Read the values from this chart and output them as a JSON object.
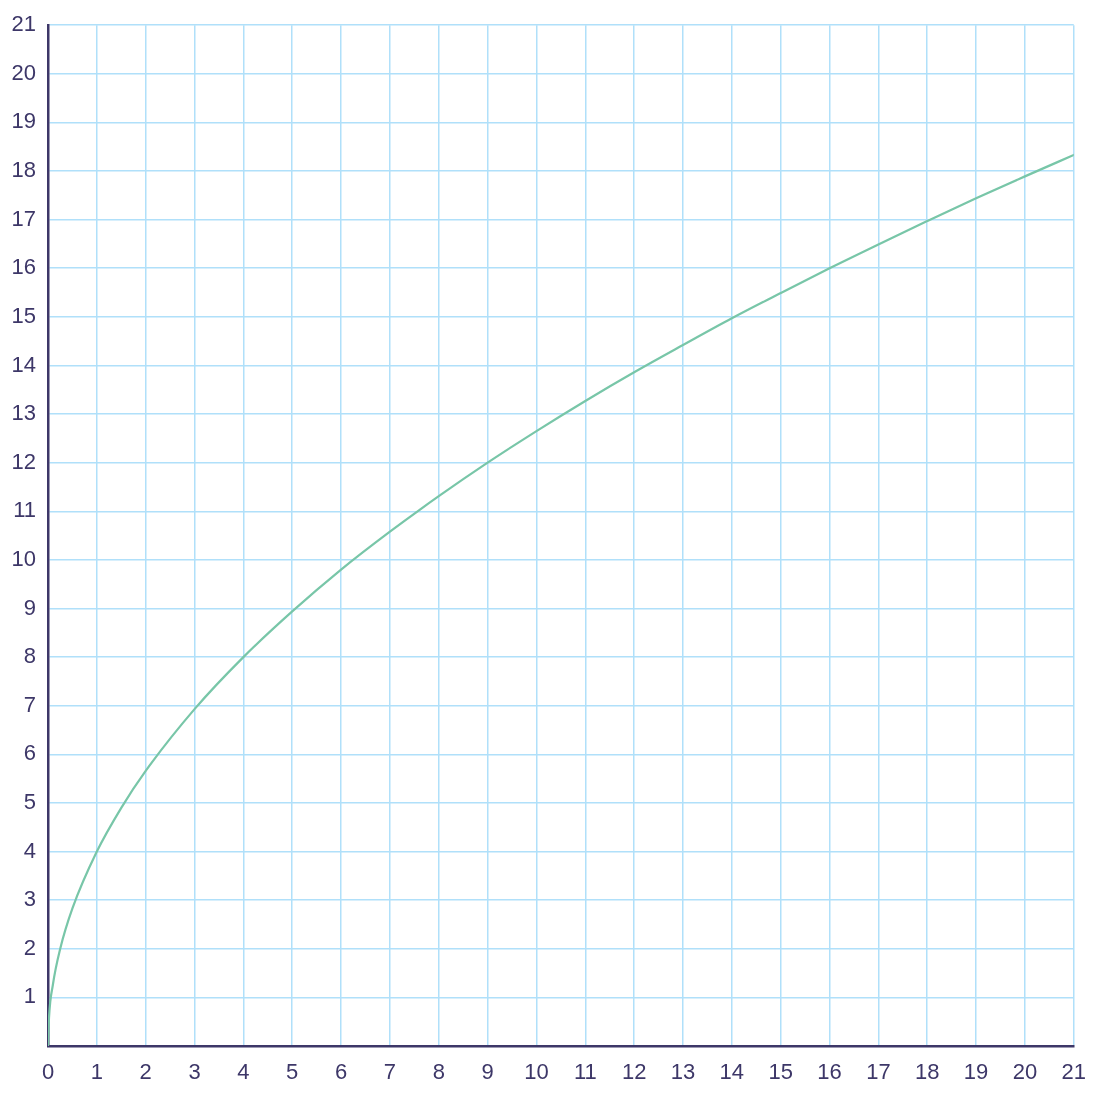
{
  "chart_data": {
    "type": "line",
    "x": [
      0,
      0.02,
      0.1,
      0.25,
      0.5,
      1,
      1.5,
      2,
      3,
      4,
      5,
      6,
      7,
      8,
      9,
      10,
      11,
      12,
      13,
      14,
      15,
      16,
      17,
      18,
      19,
      20,
      21
    ],
    "values": [
      0,
      0.57,
      1.26,
      2,
      2.83,
      4,
      4.9,
      5.66,
      6.93,
      8,
      8.94,
      9.8,
      10.58,
      11.31,
      12,
      12.65,
      13.27,
      13.86,
      14.42,
      14.97,
      15.49,
      16,
      16.49,
      16.97,
      17.44,
      17.89,
      18.33
    ],
    "color": "#78c6a8",
    "xlim": [
      0,
      21
    ],
    "ylim": [
      0,
      21
    ],
    "xticks": [
      0,
      1,
      2,
      3,
      4,
      5,
      6,
      7,
      8,
      9,
      10,
      11,
      12,
      13,
      14,
      15,
      16,
      17,
      18,
      19,
      20,
      21
    ],
    "yticks": [
      {
        "value": 0,
        "label": null
      },
      1,
      2,
      3,
      4,
      5,
      6,
      7,
      8,
      9,
      10,
      11,
      12,
      13,
      14,
      15,
      16,
      17,
      18,
      19,
      20,
      21
    ],
    "grid": true
  }
}
